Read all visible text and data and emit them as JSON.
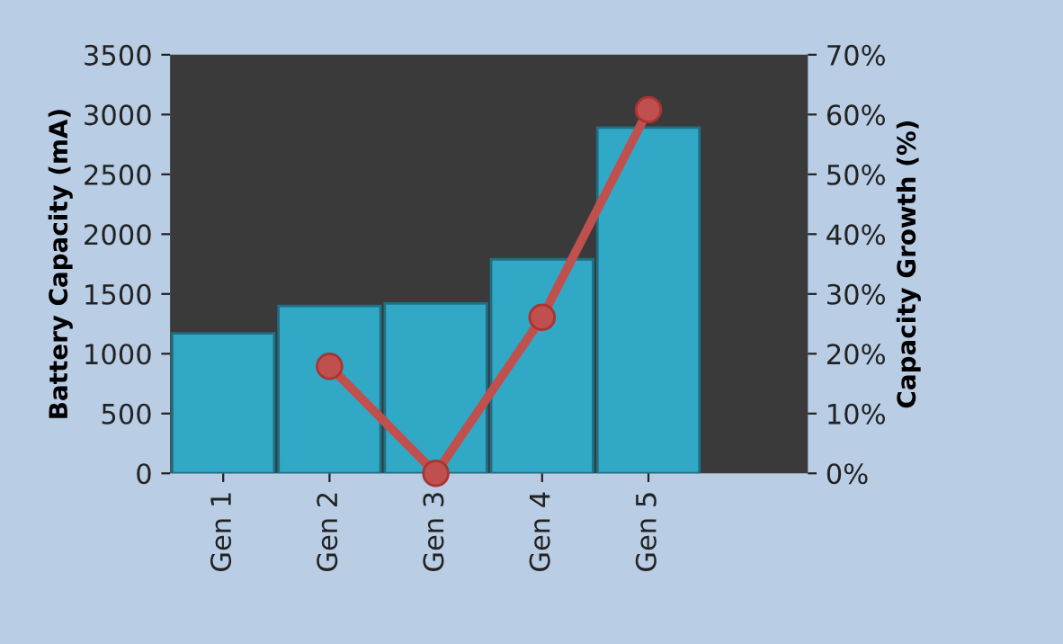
{
  "chart_data": {
    "type": "bar",
    "categories": [
      "Gen 1",
      "Gen 2",
      "Gen 3",
      "Gen 4",
      "Gen 5"
    ],
    "ylabel": "Battery Capacity (mA)",
    "y2label": "Capacity Growth (%)",
    "series": [
      {
        "color": "#31a9c6",
        "values": [
          1170,
          1400,
          1420,
          1790,
          2890
        ]
      },
      {
        "type": "line",
        "axis": "y2",
        "color": "#c0504d",
        "marker": "circle",
        "values": [
          null,
          17.9,
          0,
          26.1,
          60.8
        ]
      }
    ],
    "ylim": [
      0,
      3500
    ],
    "yticks": [
      0,
      500,
      1000,
      1500,
      2000,
      2500,
      3000,
      3500
    ],
    "y2lim": [
      0,
      70
    ],
    "y2ticks": [
      {
        "value": 0,
        "label": "0%"
      },
      {
        "value": 10,
        "label": "10%"
      },
      {
        "value": 20,
        "label": "20%"
      },
      {
        "value": 30,
        "label": "30%"
      },
      {
        "value": 40,
        "label": "40%"
      },
      {
        "value": 50,
        "label": "50%"
      },
      {
        "value": 60,
        "label": "60%"
      },
      {
        "value": 70,
        "label": "70%"
      }
    ],
    "grid": false,
    "legend": false
  }
}
